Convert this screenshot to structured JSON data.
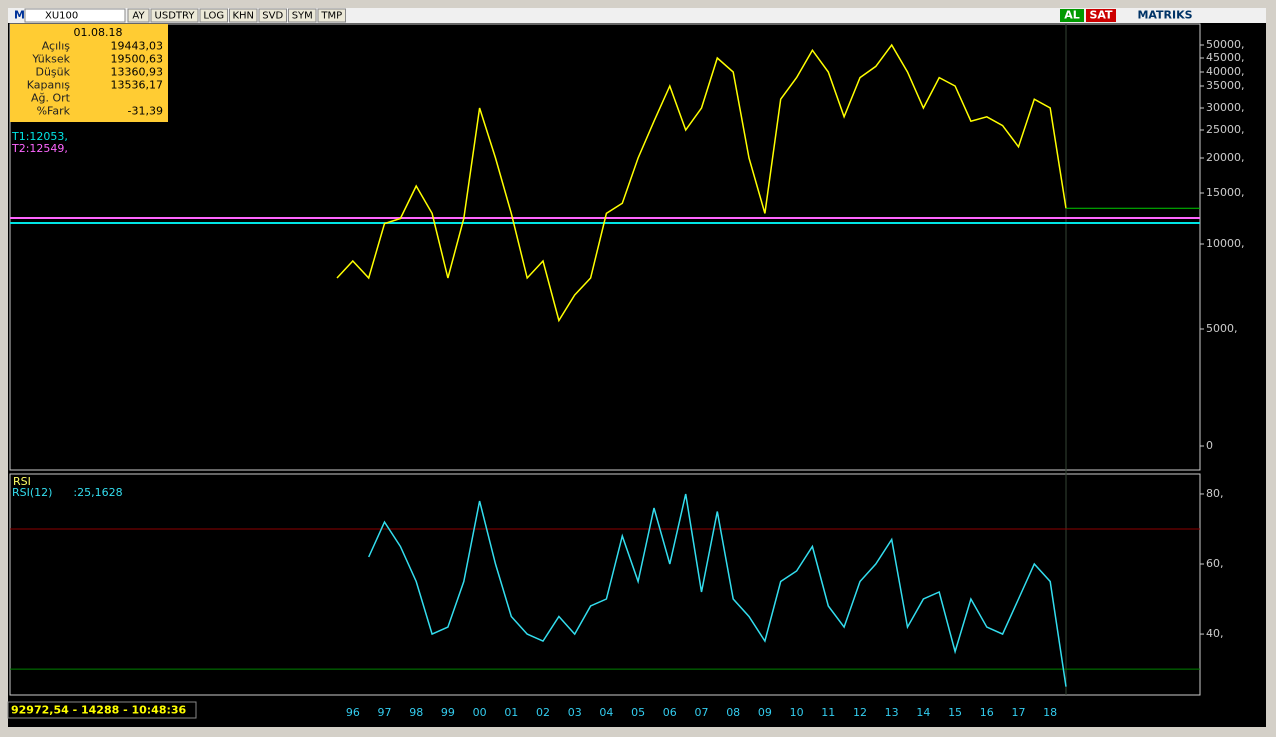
{
  "toolbar": {
    "logo": "M",
    "symbol": "XU100",
    "buttons": [
      "AY",
      "USDTRY",
      "LOG",
      "KHN",
      "SVD",
      "SYM",
      "TMP"
    ],
    "buy": "AL",
    "sell": "SAT",
    "brand": "MATRIKS"
  },
  "info_box": {
    "date": "01.08.18",
    "rows": [
      {
        "label": "Açılış",
        "value": "19443,03"
      },
      {
        "label": "Yüksek",
        "value": "19500,63"
      },
      {
        "label": "Düşük",
        "value": "13360,93"
      },
      {
        "label": "Kapanış",
        "value": "13536,17"
      },
      {
        "label": "Ağ. Ort"
      },
      {
        "label": "%Fark",
        "value": "-31,39"
      }
    ]
  },
  "status": "92972,54 - 14288 - 10:48:36",
  "chart_data": [
    {
      "type": "line",
      "name": "XU100",
      "categories": [
        null,
        "96",
        null,
        "97",
        null,
        "98",
        null,
        "99",
        null,
        "00",
        null,
        "01",
        null,
        "02",
        null,
        "03",
        null,
        "04",
        null,
        "05",
        null,
        "06",
        null,
        "07",
        null,
        "08",
        null,
        "09",
        null,
        "10",
        null,
        "11",
        null,
        "12",
        null,
        "13",
        null,
        "14",
        null,
        "15",
        null,
        "16",
        null,
        "17",
        null,
        "18",
        null
      ],
      "series": [
        {
          "name": "XU100",
          "color": "#ffff00",
          "values": [
            8000,
            9000,
            8000,
            12000,
            12500,
            16000,
            13000,
            8000,
            12500,
            30000,
            20000,
            13000,
            8000,
            9000,
            5500,
            7000,
            8000,
            13000,
            14000,
            20000,
            27000,
            35000,
            25000,
            30000,
            45000,
            40000,
            20000,
            13000,
            32000,
            38000,
            48000,
            40000,
            28000,
            38000,
            42000,
            50000,
            40000,
            30000,
            38000,
            35000,
            27000,
            28000,
            26000,
            22000,
            32000,
            30000,
            13500
          ]
        }
      ],
      "yticks": [
        {
          "value": 50000,
          "label": "50000,"
        },
        {
          "value": 45000,
          "label": "45000,"
        },
        {
          "value": 40000,
          "label": "40000,"
        },
        {
          "value": 35000,
          "label": "35000,"
        },
        {
          "value": 30000,
          "label": "30000,"
        },
        {
          "value": 25000,
          "label": "25000,"
        },
        {
          "value": 20000,
          "label": "20000,"
        },
        {
          "value": 15000,
          "label": "15000,"
        },
        {
          "value": 10000,
          "label": "10000,"
        },
        {
          "value": 5000,
          "label": "5000,"
        },
        0
      ],
      "levels": [
        {
          "label": "T1:12053,",
          "value": 12053,
          "color": "#00e5e5"
        },
        {
          "label": "T2:12549,",
          "value": 12549,
          "color": "#ff66ff"
        }
      ]
    },
    {
      "type": "line",
      "title": "RSI",
      "legend": "RSI(12)      :25,1628",
      "series": [
        {
          "name": "RSI(12)",
          "color": "#33ddee",
          "values": [
            null,
            null,
            62,
            72,
            65,
            55,
            40,
            42,
            55,
            78,
            60,
            45,
            40,
            38,
            45,
            40,
            48,
            50,
            68,
            55,
            76,
            60,
            80,
            52,
            75,
            50,
            45,
            38,
            55,
            58,
            65,
            48,
            42,
            55,
            60,
            67,
            42,
            50,
            52,
            35,
            50,
            42,
            40,
            50,
            60,
            55,
            25
          ]
        }
      ],
      "ylim": [
        22.6,
        85.7
      ],
      "yticks": [
        {
          "value": 80,
          "label": "80,"
        },
        {
          "value": 60,
          "label": "60,"
        },
        {
          "value": 40,
          "label": "40,"
        }
      ],
      "ref_lines": [
        {
          "value": 70,
          "color": "#8b0000"
        },
        {
          "value": 30,
          "color": "#008000"
        }
      ]
    }
  ]
}
